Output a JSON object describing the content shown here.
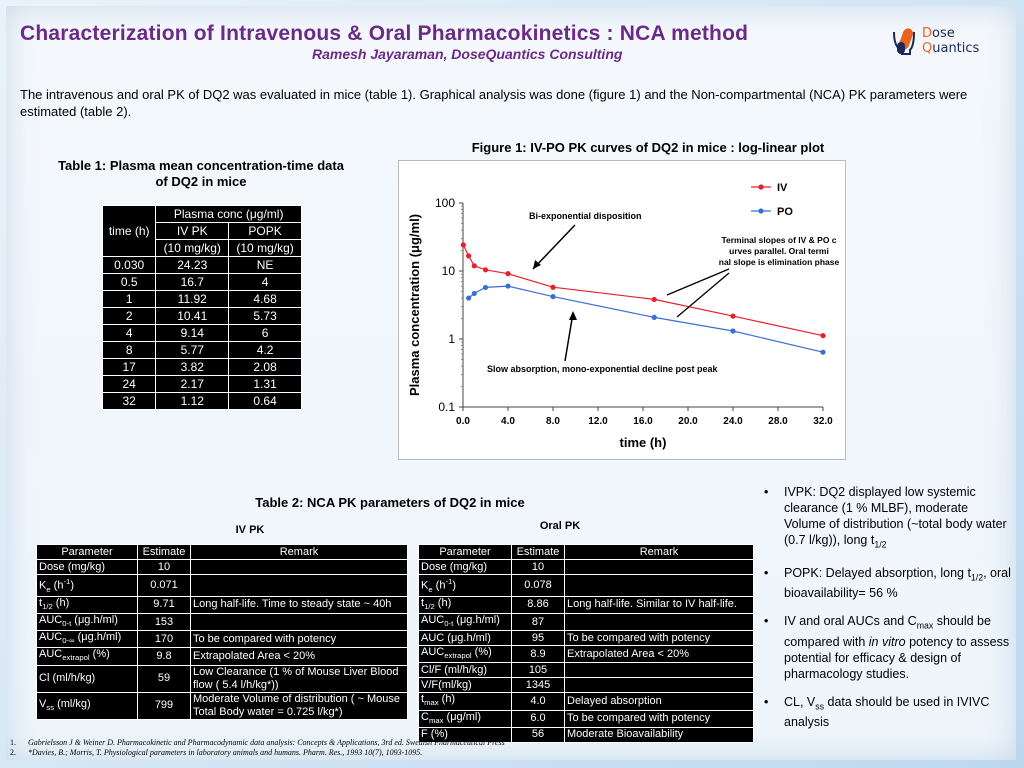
{
  "header": {
    "title": "Characterization of Intravenous & Oral Pharmacokinetics : NCA method",
    "author": "Ramesh Jayaraman, DoseQuantics Consulting",
    "logo_text_1_first": "D",
    "logo_text_1_rest": "ose",
    "logo_text_2_first": "Q",
    "logo_text_2_rest": "uantics",
    "logo_icon": "dose-flask-icon",
    "title_color": "#6b2a86"
  },
  "intro": "The intravenous and oral PK of DQ2 was evaluated in mice (table 1). Graphical analysis was done (figure 1) and the Non-compartmental (NCA) PK parameters were estimated (table 2).",
  "table1": {
    "title": "Table 1: Plasma mean concentration-time data of DQ2 in mice",
    "col_time": "time (h)",
    "group_header": "Plasma conc (μg/ml)",
    "col_iv_1": "IV PK",
    "col_iv_2": "(10 mg/kg)",
    "col_po_1": "POPK",
    "col_po_2": "(10 mg/kg)",
    "rows": [
      [
        "0.030",
        "24.23",
        "NE"
      ],
      [
        "0.5",
        "16.7",
        "4"
      ],
      [
        "1",
        "11.92",
        "4.68"
      ],
      [
        "2",
        "10.41",
        "5.73"
      ],
      [
        "4",
        "9.14",
        "6"
      ],
      [
        "8",
        "5.77",
        "4.2"
      ],
      [
        "17",
        "3.82",
        "2.08"
      ],
      [
        "24",
        "2.17",
        "1.31"
      ],
      [
        "32",
        "1.12",
        "0.64"
      ]
    ]
  },
  "chart_data": {
    "type": "line",
    "title": "Figure 1: IV-PO PK curves of DQ2 in mice : log-linear plot",
    "xlabel": "time (h)",
    "ylabel": "Plasma concentration  (μg/ml)",
    "y_scale": "log",
    "ylim": [
      0.1,
      100
    ],
    "xlim": [
      0,
      32
    ],
    "x_ticks": [
      "0.0",
      "4.0",
      "8.0",
      "12.0",
      "16.0",
      "20.0",
      "24.0",
      "28.0",
      "32.0"
    ],
    "y_ticks": [
      "0.1",
      "1",
      "10",
      "100"
    ],
    "legend_position": "top-right",
    "series": [
      {
        "name": "IV",
        "color": "#e8202a",
        "points": [
          [
            0.03,
            24.23
          ],
          [
            0.5,
            16.7
          ],
          [
            1,
            11.92
          ],
          [
            2,
            10.41
          ],
          [
            4,
            9.14
          ],
          [
            8,
            5.77
          ],
          [
            17,
            3.82
          ],
          [
            24,
            2.17
          ],
          [
            32,
            1.12
          ]
        ]
      },
      {
        "name": "PO",
        "color": "#3a6fd8",
        "points": [
          [
            0.5,
            4
          ],
          [
            1,
            4.68
          ],
          [
            2,
            5.73
          ],
          [
            4,
            6
          ],
          [
            8,
            4.2
          ],
          [
            17,
            2.08
          ],
          [
            24,
            1.31
          ],
          [
            32,
            0.64
          ]
        ]
      }
    ],
    "annotations": [
      "Bi-exponential disposition",
      "Terminal slopes of IV & PO curves parallel. Oral terminal slope is elimination phase",
      "Slow absorption, mono-exponential decline post peak"
    ]
  },
  "table2": {
    "title": "Table 2: NCA PK parameters of DQ2  in mice",
    "iv_label": "IV PK",
    "oral_label": "Oral PK",
    "headers": [
      "Parameter",
      "Estimate",
      "Remark"
    ],
    "iv_rows": [
      {
        "param": "Dose (mg/kg)",
        "est": "10",
        "remark": ""
      },
      {
        "param_main": "K",
        "param_sub": "e",
        "param_tail": " (h",
        "param_sup": "-1",
        "param_end": ")",
        "est": "0.071",
        "remark": ""
      },
      {
        "param_main": "t",
        "param_sub": "1/2",
        "param_tail": " (h)",
        "est": "9.71",
        "remark": "Long half-life. Time to steady state ~ 40h"
      },
      {
        "param_main": "AUC",
        "param_sub": "0-t",
        "param_tail": " (μg.h/ml)",
        "est": "153",
        "remark": ""
      },
      {
        "param_main": "AUC",
        "param_sub": "0-∞",
        "param_tail": " (μg.h/ml)",
        "est": "170",
        "remark": "To be compared with potency"
      },
      {
        "param_main": "AUC",
        "param_sub": "extrapol",
        "param_tail": " (%)",
        "est": "9.8",
        "remark": "Extrapolated Area < 20%"
      },
      {
        "param": "Cl (ml/h/kg)",
        "est": "59",
        "remark": "Low Clearance (1 % of Mouse Liver Blood flow ( 5.4 l/h/kg*))"
      },
      {
        "param_main": "V",
        "param_sub": "ss",
        "param_tail": " (ml/kg)",
        "est": "799",
        "remark": "Moderate Volume of distribution ( ~ Mouse Total Body water = 0.725 l/kg*)"
      }
    ],
    "oral_rows": [
      {
        "param": "Dose (mg/kg)",
        "est": "10",
        "remark": ""
      },
      {
        "param_main": "K",
        "param_sub": "e",
        "param_tail": " (h",
        "param_sup": "-1",
        "param_end": ")",
        "est": "0.078",
        "remark": ""
      },
      {
        "param_main": "t",
        "param_sub": "1/2",
        "param_tail": " (h)",
        "est": "8.86",
        "remark": "Long half-life. Similar to IV half-life."
      },
      {
        "param_main": "AUC",
        "param_sub": "0-t",
        "param_tail": " (μg.h/ml)",
        "est": "87",
        "remark": ""
      },
      {
        "param": "AUC (μg.h/ml)",
        "est": "95",
        "remark": "To be compared with potency"
      },
      {
        "param_main": "AUC",
        "param_sub": "extrapol",
        "param_tail": " (%)",
        "est": "8.9",
        "remark": "Extrapolated Area < 20%"
      },
      {
        "param": "Cl/F (ml/h/kg)",
        "est": "105",
        "remark": ""
      },
      {
        "param": "V/F(ml/kg)",
        "est": "1345",
        "remark": ""
      },
      {
        "param_main": "t",
        "param_sub": "max",
        "param_tail": " (h)",
        "est": "4.0",
        "remark": "Delayed absorption"
      },
      {
        "param_main": "C",
        "param_sub": "max",
        "param_tail": " (μg/ml)",
        "est": "6.0",
        "remark": "To be compared with potency"
      },
      {
        "param": "F (%)",
        "est": "56",
        "remark": "Moderate Bioavailability"
      }
    ]
  },
  "bullets": [
    {
      "text": "IVPK: DQ2 displayed low systemic clearance (1 % MLBF), moderate Volume of distribution (~total body water (0.7 l/kg)), long t",
      "sub": "1/2",
      "after": ""
    },
    {
      "text": "POPK: Delayed absorption, long t",
      "sub": "1/2",
      "after": ", oral bioavailability= 56 %"
    },
    {
      "text": "IV and oral AUCs and C",
      "sub": "max",
      "after": " should be compared with ",
      "italic": "in vitro",
      "after2": " potency to assess potential for efficacy & design of pharmacology studies."
    },
    {
      "text": "CL, V",
      "sub": "ss",
      "after": " data should be used in IVIVC analysis"
    }
  ],
  "references": [
    {
      "num": "1.",
      "text": "Gabrielsson J & Weiner D. Pharmacokinetic and Pharmacodynamic data analysis: Concepts & Applications, 3rd ed. Swedish Pharmaceutical Press"
    },
    {
      "num": "2.",
      "text": "*Davies, B.; Morris, T. Physiological parameters in laboratory animals and humans. Pharm. Res., 1993 10(7), 1093-1095."
    }
  ]
}
